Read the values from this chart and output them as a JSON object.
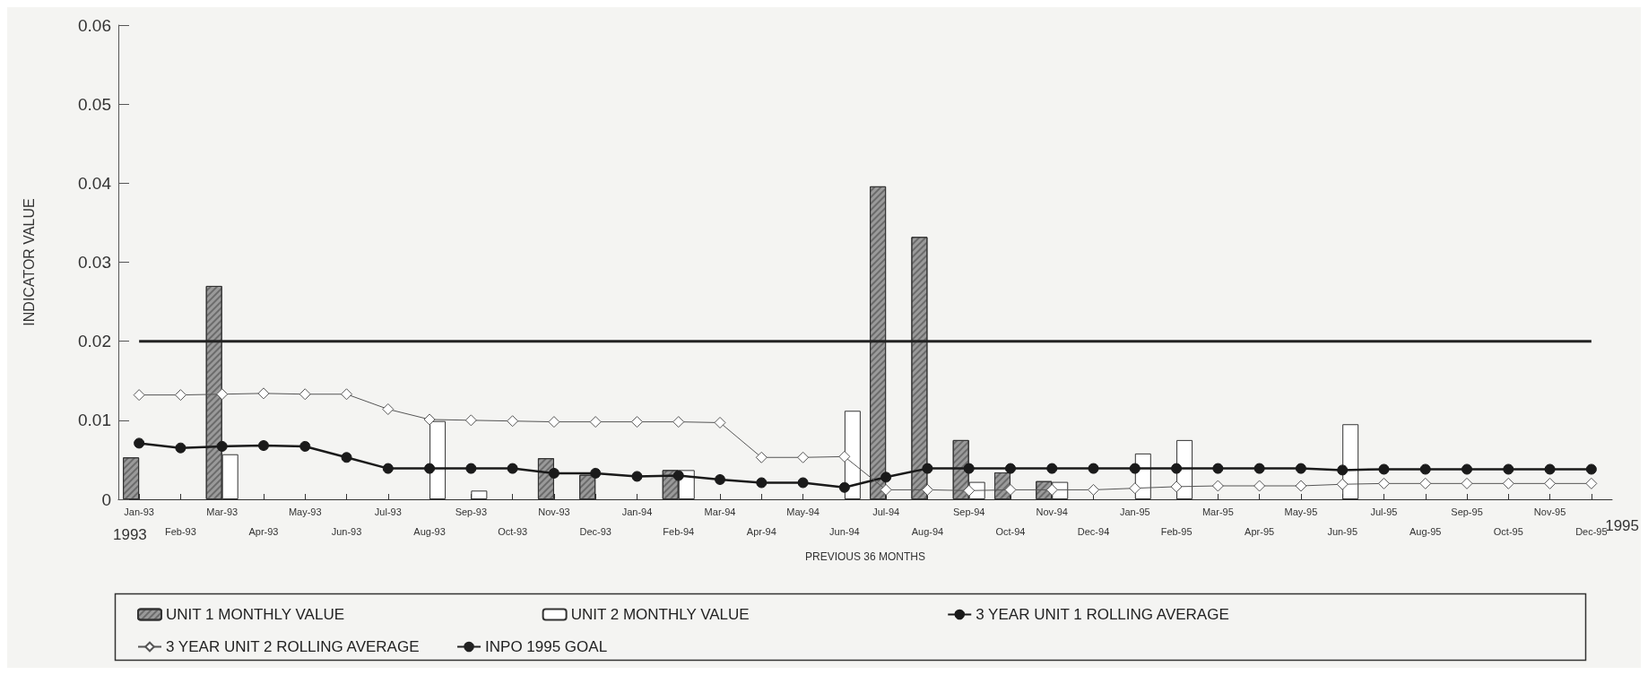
{
  "chart_data": {
    "type": "bar",
    "xlabel": "PREVIOUS 36 MONTHS",
    "ylabel": "INDICATOR VALUE",
    "categories": [
      "Jan-93",
      "Feb-93",
      "Mar-93",
      "Apr-93",
      "May-93",
      "Jun-93",
      "Jul-93",
      "Aug-93",
      "Sep-93",
      "Oct-93",
      "Nov-93",
      "Dec-93",
      "Jan-94",
      "Feb-94",
      "Mar-94",
      "Apr-94",
      "May-94",
      "Jun-94",
      "Jul-94",
      "Aug-94",
      "Sep-94",
      "Oct-94",
      "Nov-94",
      "Dec-94",
      "Jan-95",
      "Feb-95",
      "Mar-95",
      "Apr-95",
      "May-95",
      "Jun-95",
      "Jul-95",
      "Aug-95",
      "Sep-95",
      "Oct-95",
      "Nov-95",
      "Dec-95"
    ],
    "series": [
      {
        "name": "UNIT 1 MONTHLY VALUE",
        "color": "#9a9a9a",
        "values": [
          0.0053,
          null,
          0.027,
          null,
          null,
          null,
          null,
          null,
          null,
          null,
          0.0052,
          0.0031,
          null,
          0.0037,
          null,
          null,
          null,
          null,
          0.0396,
          0.0332,
          0.0075,
          0.0034,
          0.0023,
          null,
          null,
          null,
          null,
          null,
          null,
          null,
          null,
          null,
          null,
          null,
          null,
          null
        ]
      },
      {
        "name": "UNIT 2 MONTHLY VALUE",
        "color": "#ffffff",
        "values": [
          null,
          null,
          0.0057,
          null,
          null,
          null,
          null,
          0.0099,
          0.0011,
          null,
          null,
          null,
          null,
          0.0037,
          null,
          null,
          null,
          0.0112,
          null,
          null,
          0.0022,
          null,
          0.0022,
          null,
          0.0058,
          0.0075,
          null,
          null,
          null,
          0.0095,
          null,
          null,
          null,
          null,
          null,
          null
        ]
      },
      {
        "name": "3 YEAR UNIT 1 ROLLING AVERAGE",
        "type": "line",
        "marker": "circle",
        "color": "#1a1a1a",
        "values": [
          0.0071,
          0.0065,
          0.0067,
          0.0068,
          0.0067,
          0.0053,
          0.0039,
          0.0039,
          0.0039,
          0.0039,
          0.0033,
          0.0033,
          0.0029,
          0.003,
          0.0025,
          0.0021,
          0.0021,
          0.0015,
          0.0028,
          0.0039,
          0.0039,
          0.0039,
          0.0039,
          0.0039,
          0.0039,
          0.0039,
          0.0039,
          0.0039,
          0.0039,
          0.0037,
          0.0038,
          0.0038,
          0.0038,
          0.0038,
          0.0038,
          0.0038
        ]
      },
      {
        "name": "3 YEAR UNIT 2 ROLLING AVERAGE",
        "type": "line",
        "marker": "diamond",
        "color": "#555555",
        "values": [
          0.0132,
          0.0132,
          0.0133,
          0.0134,
          0.0133,
          0.0133,
          0.0114,
          0.0101,
          0.01,
          0.0099,
          0.0098,
          0.0098,
          0.0098,
          0.0098,
          0.0097,
          0.0053,
          0.0053,
          0.0054,
          0.0012,
          0.0012,
          0.0011,
          0.0012,
          0.0012,
          0.0012,
          0.0014,
          0.0016,
          0.0017,
          0.0017,
          0.0017,
          0.0019,
          0.002,
          0.002,
          0.002,
          0.002,
          0.002,
          0.002
        ]
      },
      {
        "name": "INPO 1995 GOAL",
        "type": "line",
        "marker": "none",
        "color": "#222222",
        "values": [
          0.02,
          0.02,
          0.02,
          0.02,
          0.02,
          0.02,
          0.02,
          0.02,
          0.02,
          0.02,
          0.02,
          0.02,
          0.02,
          0.02,
          0.02,
          0.02,
          0.02,
          0.02,
          0.02,
          0.02,
          0.02,
          0.02,
          0.02,
          0.02,
          0.02,
          0.02,
          0.02,
          0.02,
          0.02,
          0.02,
          0.02,
          0.02,
          0.02,
          0.02,
          0.02,
          0.02
        ]
      }
    ],
    "ylim": [
      0,
      0.06
    ],
    "yticks": [
      0,
      {
        "value": 0.01,
        "label": "0.01"
      },
      {
        "value": 0.02,
        "label": "0.02"
      },
      {
        "value": 0.03,
        "label": "0.03"
      },
      {
        "value": 0.04,
        "label": "0.04"
      },
      {
        "value": 0.05,
        "label": "0.05"
      },
      {
        "value": 0.06,
        "label": "0.06"
      }
    ],
    "grid": false,
    "legend": "bottom",
    "annotations": [
      "1993",
      "1995"
    ]
  }
}
